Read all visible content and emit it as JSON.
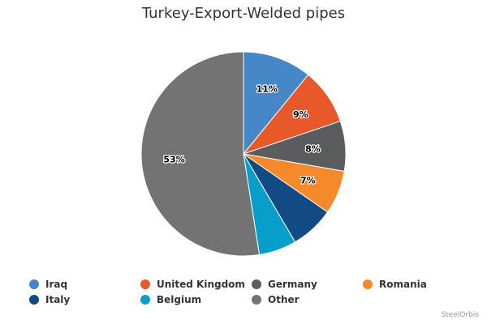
{
  "chart_data": {
    "type": "pie",
    "title": "Turkey-Export-Welded pipes",
    "slices": [
      {
        "name": "Iraq",
        "value": 11,
        "label": "11%",
        "color": "#4587c7"
      },
      {
        "name": "United Kingdom",
        "value": 9,
        "label": "9%",
        "color": "#e8592a"
      },
      {
        "name": "Germany",
        "value": 8,
        "label": "8%",
        "color": "#5b5c5e"
      },
      {
        "name": "Romania",
        "value": 7,
        "label": "7%",
        "color": "#f58a2b"
      },
      {
        "name": "Italy",
        "value": 7,
        "label": "",
        "color": "#124a84"
      },
      {
        "name": "Belgium",
        "value": 6,
        "label": "",
        "color": "#079fca"
      },
      {
        "name": "Other",
        "value": 53,
        "label": "53%",
        "color": "#737373"
      }
    ],
    "legend_position": "bottom",
    "credit": "SteelOrbis"
  }
}
